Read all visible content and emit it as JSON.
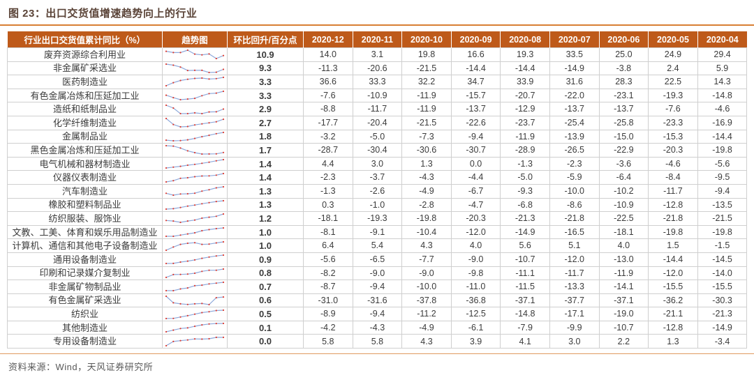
{
  "title": "图 23：出口交货值增速趋势向上的行业",
  "footer": "资料来源：Wind，天风证券研究所",
  "colors": {
    "header_bg": "#be5a1a",
    "accent_rule": "#d87e33",
    "title_text": "#5a4337",
    "mom_value_red": "#fe0000",
    "sparkline_line": "#8ea9db",
    "sparkline_marker": "#e03c31",
    "grid_border": "#cfcfcf",
    "source_text": "#595959"
  },
  "chart_data": {
    "type": "table",
    "title": "出口交货值增速趋势向上的行业",
    "sparkline_column": "趋势图",
    "sparkline_direction": "plots 2020-04 (left) to 2020-12 (right)",
    "columns": [
      "行业出口交货值累计同比（%）",
      "趋势图",
      "环比回升/百分点",
      "2020-12",
      "2020-11",
      "2020-10",
      "2020-09",
      "2020-08",
      "2020-07",
      "2020-06",
      "2020-05",
      "2020-04"
    ],
    "rows": [
      {
        "industry": "废弃资源综合利用业",
        "mom": 10.9,
        "values": [
          14.0,
          3.1,
          19.8,
          16.6,
          19.3,
          33.5,
          25.0,
          24.9,
          29.4
        ]
      },
      {
        "industry": "非金属矿采选业",
        "mom": 9.3,
        "values": [
          -11.3,
          -20.6,
          -21.5,
          -14.4,
          -14.4,
          -14.9,
          -3.8,
          2.4,
          5.9
        ]
      },
      {
        "industry": "医药制造业",
        "mom": 3.3,
        "values": [
          36.6,
          33.3,
          32.2,
          34.7,
          33.9,
          31.6,
          28.3,
          22.5,
          14.3
        ]
      },
      {
        "industry": "有色金属冶炼和压延加工业",
        "mom": 3.3,
        "values": [
          -7.6,
          -10.9,
          -11.9,
          -15.7,
          -20.7,
          -22.0,
          -23.1,
          -19.3,
          -14.8
        ]
      },
      {
        "industry": "造纸和纸制品业",
        "mom": 2.9,
        "values": [
          -8.8,
          -11.7,
          -11.9,
          -13.7,
          -12.9,
          -13.7,
          -13.7,
          -7.6,
          -4.6
        ]
      },
      {
        "industry": "化学纤维制造业",
        "mom": 2.7,
        "values": [
          -17.7,
          -20.4,
          -21.5,
          -22.6,
          -23.7,
          -25.4,
          -25.8,
          -23.3,
          -16.9
        ]
      },
      {
        "industry": "金属制品业",
        "mom": 1.8,
        "values": [
          -3.2,
          -5.0,
          -7.3,
          -9.4,
          -11.9,
          -13.9,
          -15.0,
          -15.3,
          -14.4
        ]
      },
      {
        "industry": "黑色金属冶炼和压延加工业",
        "mom": 1.7,
        "values": [
          -28.7,
          -30.4,
          -30.6,
          -30.7,
          -28.9,
          -26.5,
          -22.9,
          -20.3,
          -19.8
        ]
      },
      {
        "industry": "电气机械和器材制造业",
        "mom": 1.4,
        "values": [
          4.4,
          3.0,
          1.3,
          0.0,
          -1.3,
          -2.3,
          -3.6,
          -4.6,
          -5.6
        ]
      },
      {
        "industry": "仪器仪表制造业",
        "mom": 1.4,
        "values": [
          -2.3,
          -3.7,
          -4.3,
          -4.4,
          -5.0,
          -5.9,
          -6.4,
          -8.4,
          -9.5
        ]
      },
      {
        "industry": "汽车制造业",
        "mom": 1.3,
        "values": [
          -1.3,
          -2.6,
          -4.9,
          -6.7,
          -9.3,
          -10.0,
          -10.2,
          -11.7,
          -9.4
        ]
      },
      {
        "industry": "橡胶和塑料制品业",
        "mom": 1.3,
        "values": [
          0.3,
          -1.0,
          -2.8,
          -4.7,
          -6.8,
          -8.6,
          -10.9,
          -12.8,
          -13.5
        ]
      },
      {
        "industry": "纺织服装、服饰业",
        "mom": 1.2,
        "values": [
          -18.1,
          -19.3,
          -19.8,
          -20.3,
          -21.3,
          -21.8,
          -22.5,
          -21.8,
          -21.5
        ]
      },
      {
        "industry": "文教、工美、体育和娱乐用品制造业",
        "mom": 1.0,
        "values": [
          -8.1,
          -9.1,
          -10.4,
          -12.0,
          -14.9,
          -16.5,
          -18.1,
          -19.8,
          -19.8
        ]
      },
      {
        "industry": "计算机、通信和其他电子设备制造业",
        "mom": 1.0,
        "values": [
          6.4,
          5.4,
          4.3,
          4.0,
          5.6,
          5.1,
          4.0,
          1.5,
          -1.5
        ]
      },
      {
        "industry": "通用设备制造业",
        "mom": 0.9,
        "values": [
          -5.6,
          -6.5,
          -7.7,
          -9.0,
          -10.7,
          -12.0,
          -13.0,
          -14.4,
          -14.5
        ]
      },
      {
        "industry": "印刷和记录媒介复制业",
        "mom": 0.8,
        "values": [
          -8.2,
          -9.0,
          -9.0,
          -9.8,
          -11.1,
          -11.7,
          -11.9,
          -12.0,
          -14.0
        ]
      },
      {
        "industry": "非金属矿物制品业",
        "mom": 0.7,
        "values": [
          -8.7,
          -9.4,
          -10.0,
          -11.0,
          -11.5,
          -13.3,
          -14.1,
          -15.5,
          -15.5
        ]
      },
      {
        "industry": "有色金属矿采选业",
        "mom": 0.6,
        "values": [
          -31.0,
          -31.6,
          -37.8,
          -36.8,
          -37.1,
          -37.7,
          -37.1,
          -36.2,
          -30.3
        ]
      },
      {
        "industry": "纺织业",
        "mom": 0.5,
        "values": [
          -8.9,
          -9.4,
          -11.2,
          -12.5,
          -14.8,
          -17.1,
          -19.0,
          -21.1,
          -21.3
        ]
      },
      {
        "industry": "其他制造业",
        "mom": 0.1,
        "values": [
          -4.2,
          -4.3,
          -4.9,
          -6.1,
          -7.9,
          -9.9,
          -10.7,
          -12.8,
          -14.9
        ]
      },
      {
        "industry": "专用设备制造业",
        "mom": 0.0,
        "values": [
          5.8,
          5.8,
          4.3,
          3.9,
          4.1,
          3.0,
          2.2,
          1.3,
          -3.4
        ]
      }
    ]
  }
}
